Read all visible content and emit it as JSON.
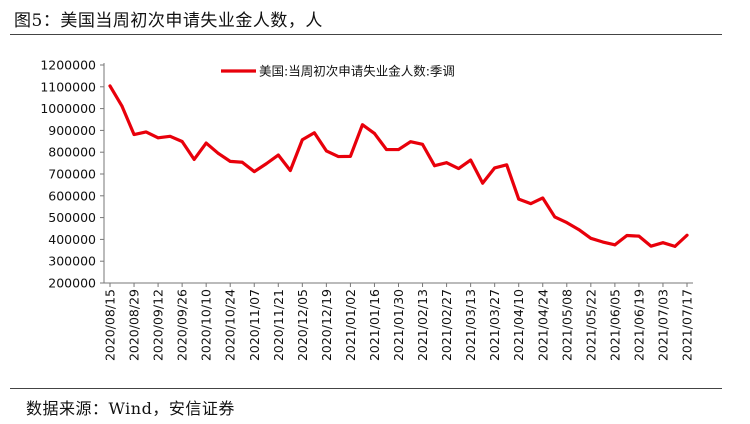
{
  "header": {
    "title": "图5：美国当周初次申请失业金人数，人"
  },
  "footer": {
    "source": "数据来源：Wind，安信证券"
  },
  "chart_data": {
    "type": "line",
    "title": "",
    "xlabel": "",
    "ylabel": "",
    "ylim": [
      200000,
      1200000
    ],
    "yticks": [
      1200000,
      1100000,
      1000000,
      900000,
      800000,
      700000,
      600000,
      500000,
      400000,
      300000,
      200000
    ],
    "ytick_labels": [
      "1200000",
      "1100000",
      "1000000",
      "900000",
      "800000",
      "700000",
      "600000",
      "500000",
      "400000",
      "300000",
      "200000"
    ],
    "xtick_labels": [
      "2020/08/15",
      "2020/08/29",
      "2020/09/12",
      "2020/09/26",
      "2020/10/10",
      "2020/10/24",
      "2020/11/07",
      "2020/11/21",
      "2020/12/05",
      "2020/12/19",
      "2021/01/02",
      "2021/01/16",
      "2021/01/30",
      "2021/02/13",
      "2021/02/27",
      "2021/03/13",
      "2021/03/27",
      "2021/04/10",
      "2021/04/24",
      "2021/05/08",
      "2021/05/22",
      "2021/06/05",
      "2021/06/19",
      "2021/07/03",
      "2021/07/17"
    ],
    "legend": "top-center",
    "grid": false,
    "series": [
      {
        "name": "美国:当周初次申请失业金人数:季调",
        "color": "#e8000b",
        "x": [
          "2020/08/15",
          "2020/08/22",
          "2020/08/29",
          "2020/09/05",
          "2020/09/12",
          "2020/09/19",
          "2020/09/26",
          "2020/10/03",
          "2020/10/10",
          "2020/10/17",
          "2020/10/24",
          "2020/10/31",
          "2020/11/07",
          "2020/11/14",
          "2020/11/21",
          "2020/11/28",
          "2020/12/05",
          "2020/12/12",
          "2020/12/19",
          "2020/12/26",
          "2021/01/02",
          "2021/01/09",
          "2021/01/16",
          "2021/01/23",
          "2021/01/30",
          "2021/02/06",
          "2021/02/13",
          "2021/02/20",
          "2021/02/27",
          "2021/03/06",
          "2021/03/13",
          "2021/03/20",
          "2021/03/27",
          "2021/04/03",
          "2021/04/10",
          "2021/04/17",
          "2021/04/24",
          "2021/05/01",
          "2021/05/08",
          "2021/05/15",
          "2021/05/22",
          "2021/05/29",
          "2021/06/05",
          "2021/06/12",
          "2021/06/19",
          "2021/06/26",
          "2021/07/03",
          "2021/07/10",
          "2021/07/17"
        ],
        "values": [
          1104000,
          1011000,
          881000,
          893000,
          866000,
          873000,
          849000,
          767000,
          842000,
          795000,
          758000,
          754000,
          711000,
          747000,
          787000,
          716000,
          857000,
          889000,
          806000,
          780000,
          781000,
          926000,
          886000,
          812000,
          812000,
          848000,
          836000,
          738000,
          752000,
          725000,
          764000,
          658000,
          728000,
          742000,
          585000,
          564000,
          590000,
          503000,
          477000,
          445000,
          405000,
          388000,
          375000,
          418000,
          415000,
          369000,
          385000,
          368000,
          419000
        ]
      }
    ]
  }
}
